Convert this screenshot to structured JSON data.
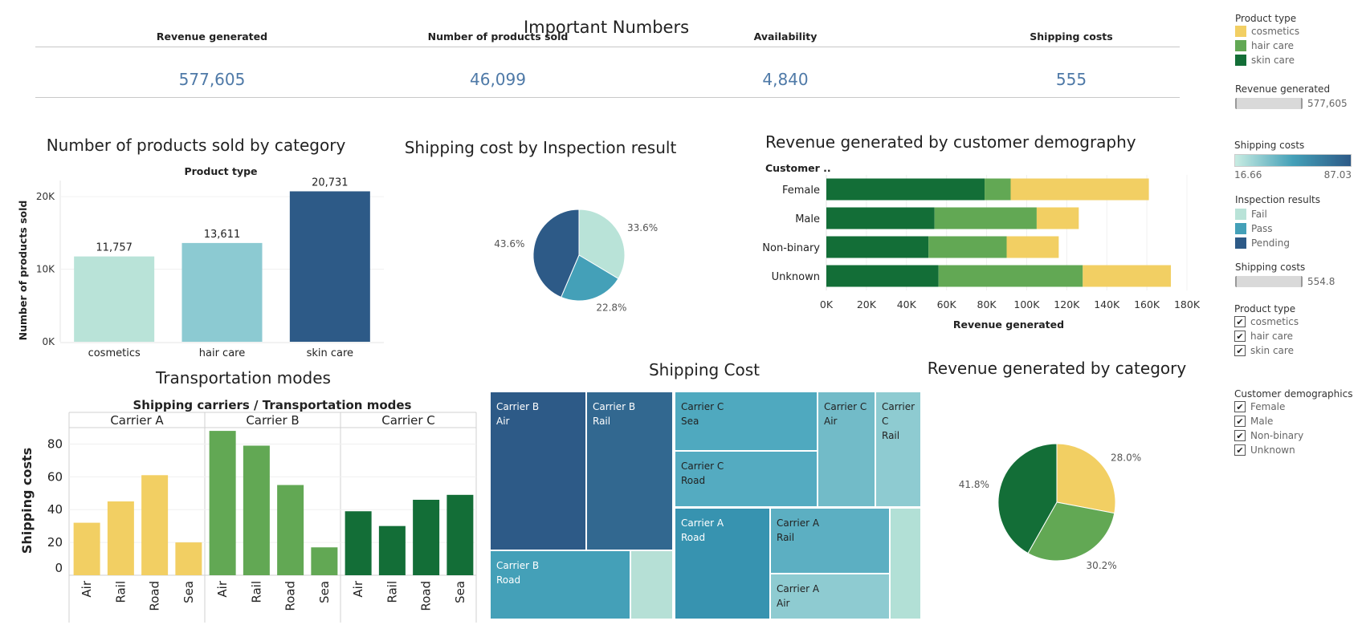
{
  "kpis": {
    "title": "Important Numbers",
    "items": [
      {
        "label": "Revenue generated",
        "value": "577,605"
      },
      {
        "label": "Number of products sold",
        "value": "46,099"
      },
      {
        "label": "Availability",
        "value": "4,840"
      },
      {
        "label": "Shipping costs",
        "value": "555"
      }
    ]
  },
  "colors": {
    "cosmetics": "#f2cf63",
    "hair_care": "#62a854",
    "skin_care": "#136e37",
    "fail": "#b9e3d8",
    "pass": "#44a0b8",
    "pending": "#2d5a87",
    "kpi_value": "#4e79a7"
  },
  "legends": {
    "product_type": {
      "title": "Product type",
      "items": [
        "cosmetics",
        "hair care",
        "skin care"
      ]
    },
    "revenue_filter": {
      "title": "Revenue generated",
      "value": "577,605"
    },
    "shipping_gradient": {
      "title": "Shipping costs",
      "min": "16.66",
      "max": "87.03"
    },
    "inspection": {
      "title": "Inspection results",
      "items": [
        "Fail",
        "Pass",
        "Pending"
      ]
    },
    "shipping_filter": {
      "title": "Shipping costs",
      "value": "554.8"
    },
    "product_filter": {
      "title": "Product type",
      "items": [
        "cosmetics",
        "hair care",
        "skin care"
      ]
    },
    "demographics_filter": {
      "title": "Customer demographics",
      "items": [
        "Female",
        "Male",
        "Non-binary",
        "Unknown"
      ]
    }
  },
  "chart_data": [
    {
      "id": "products_sold",
      "type": "bar",
      "title": "Number of products sold by category",
      "header": "Product type",
      "ylabel": "Number of products sold",
      "categories": [
        "cosmetics",
        "hair care",
        "skin care"
      ],
      "values": [
        11757,
        13611,
        20731
      ],
      "value_labels": [
        "11,757",
        "13,611",
        "20,731"
      ],
      "ylim": [
        0,
        22000
      ],
      "yticks": [
        "0K",
        "10K",
        "20K"
      ],
      "colors": [
        "#b9e3d8",
        "#8ccad2",
        "#2d5a87"
      ]
    },
    {
      "id": "inspection_pie",
      "type": "pie",
      "title": "Shipping cost by Inspection result",
      "slices": [
        {
          "name": "Fail",
          "value": 33.6,
          "label": "33.6%"
        },
        {
          "name": "Pass",
          "value": 22.8,
          "label": "22.8%"
        },
        {
          "name": "Pending",
          "value": 43.6,
          "label": "43.6%"
        }
      ]
    },
    {
      "id": "demography",
      "type": "bar",
      "orientation": "horizontal-stacked",
      "title": "Revenue generated by customer demography",
      "header": "Customer ..",
      "xlabel": "Revenue generated",
      "categories": [
        "Female",
        "Male",
        "Non-binary",
        "Unknown"
      ],
      "xlim": [
        0,
        180000
      ],
      "xticks": [
        "0K",
        "20K",
        "40K",
        "60K",
        "80K",
        "100K",
        "120K",
        "140K",
        "160K",
        "180K"
      ],
      "series": [
        {
          "name": "skin care",
          "values": [
            79000,
            54000,
            51000,
            56000
          ]
        },
        {
          "name": "hair care",
          "values": [
            13000,
            51000,
            39000,
            72000
          ]
        },
        {
          "name": "cosmetics",
          "values": [
            69000,
            21000,
            26000,
            44000
          ]
        }
      ]
    },
    {
      "id": "transportation",
      "type": "bar",
      "title": "Transportation modes",
      "header": "Shipping carriers  /  Transportation modes",
      "ylabel": "Shipping costs",
      "ylim": [
        0,
        90
      ],
      "yticks": [
        "0",
        "20",
        "40",
        "60",
        "80"
      ],
      "groups": [
        {
          "name": "Carrier A",
          "categories": [
            "Air",
            "Rail",
            "Road",
            "Sea"
          ],
          "values": [
            32,
            45,
            61,
            20
          ]
        },
        {
          "name": "Carrier B",
          "categories": [
            "Air",
            "Rail",
            "Road",
            "Sea"
          ],
          "values": [
            88,
            79,
            55,
            17
          ]
        },
        {
          "name": "Carrier C",
          "categories": [
            "Air",
            "Rail",
            "Road",
            "Sea"
          ],
          "values": [
            39,
            30,
            46,
            49
          ]
        }
      ]
    },
    {
      "id": "treemap",
      "type": "treemap",
      "title": "Shipping Cost",
      "cells": [
        {
          "name": "Carrier B Air",
          "lines": [
            "Carrier B",
            "Air"
          ],
          "color": "#2d5a87"
        },
        {
          "name": "Carrier B Rail",
          "lines": [
            "Carrier B",
            "Rail"
          ],
          "color": "#326890"
        },
        {
          "name": "Carrier B Road",
          "lines": [
            "Carrier B",
            "Road"
          ],
          "color": "#44a0b8"
        },
        {
          "name": "Carrier B Sea",
          "lines": [],
          "color": "#b6e0d6"
        },
        {
          "name": "Carrier C Sea",
          "lines": [
            "Carrier C",
            "Sea"
          ],
          "color": "#4fa9bf"
        },
        {
          "name": "Carrier C Road",
          "lines": [
            "Carrier C",
            "Road"
          ],
          "color": "#54abc1"
        },
        {
          "name": "Carrier C Air",
          "lines": [
            "Carrier C",
            "Air"
          ],
          "color": "#72bbc8"
        },
        {
          "name": "Carrier C Rail",
          "lines": [
            "Carrier",
            "C",
            "Rail"
          ],
          "color": "#8ecbd1"
        },
        {
          "name": "Carrier A Road",
          "lines": [
            "Carrier A",
            "Road"
          ],
          "color": "#3793b0"
        },
        {
          "name": "Carrier A Rail",
          "lines": [
            "Carrier A",
            "Rail"
          ],
          "color": "#5cafc2"
        },
        {
          "name": "Carrier A Air",
          "lines": [
            "Carrier A",
            "Air"
          ],
          "color": "#8ecbd1"
        },
        {
          "name": "Carrier A Sea",
          "lines": [],
          "color": "#b2e0d6"
        }
      ]
    },
    {
      "id": "revenue_pie",
      "type": "pie",
      "title": "Revenue generated by category",
      "slices": [
        {
          "name": "cosmetics",
          "value": 28.0,
          "label": "28.0%"
        },
        {
          "name": "hair care",
          "value": 30.2,
          "label": "30.2%"
        },
        {
          "name": "skin care",
          "value": 41.8,
          "label": "41.8%"
        }
      ]
    }
  ]
}
